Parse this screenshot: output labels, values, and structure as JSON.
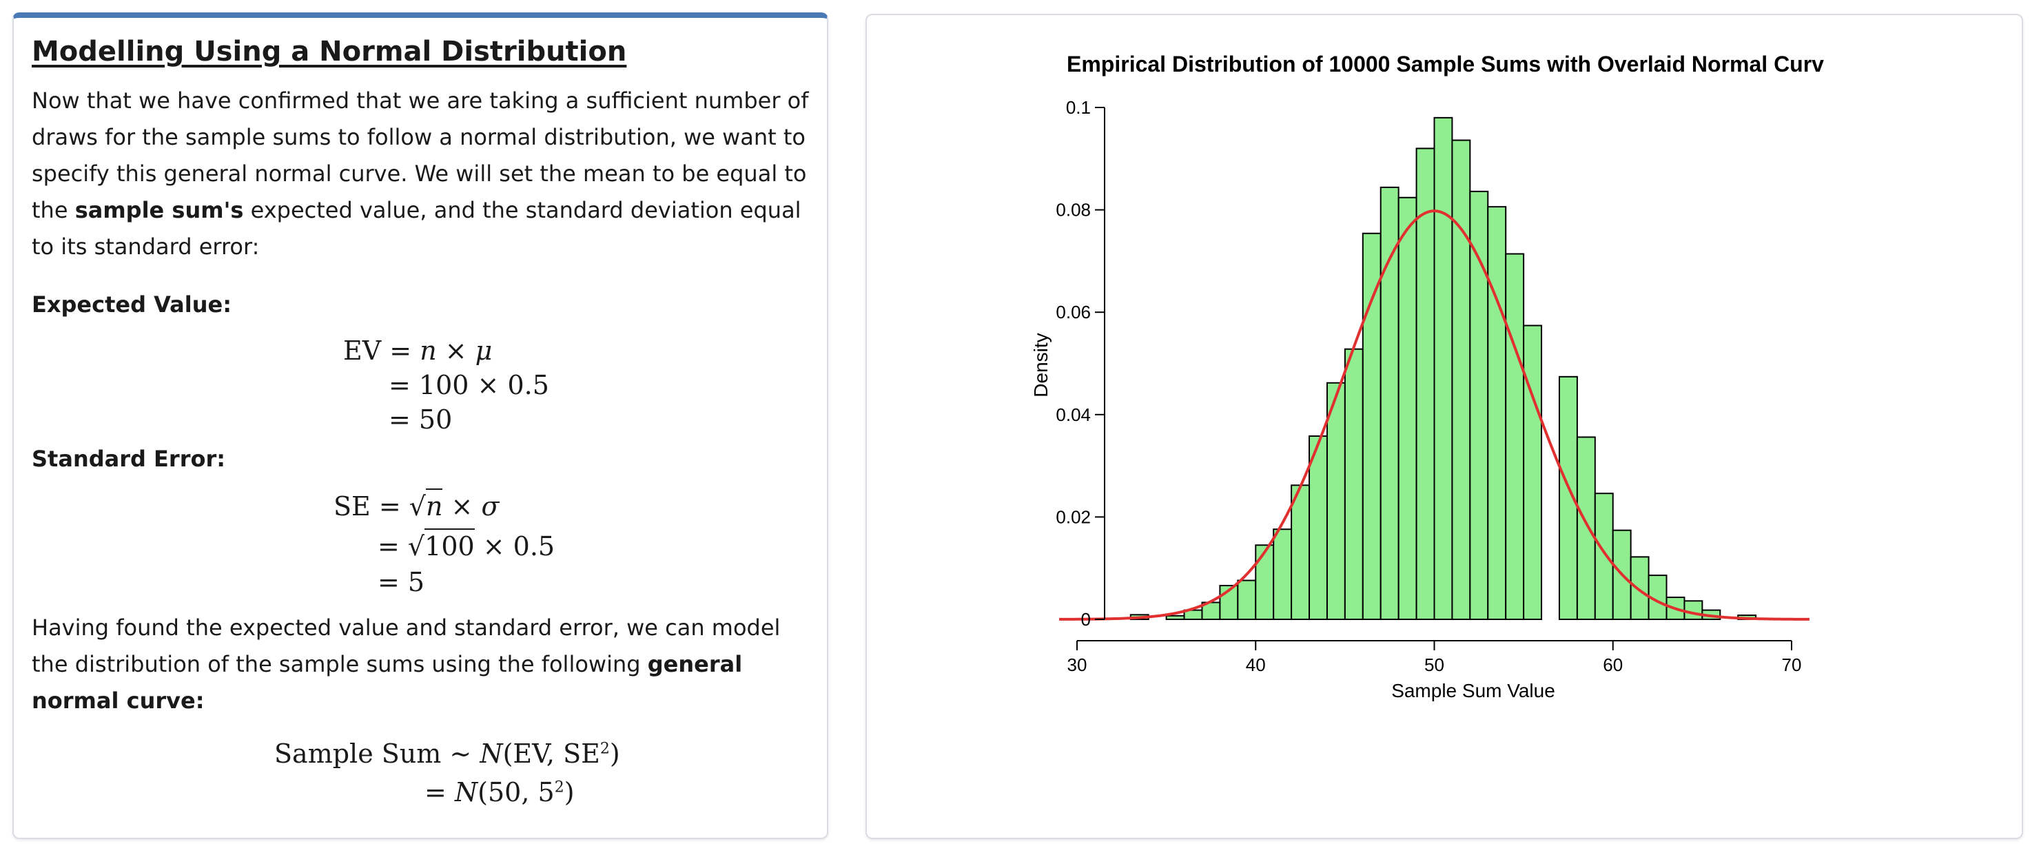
{
  "left": {
    "heading": "Modelling Using a Normal Distribution",
    "intro_part1": "Now that we have confirmed that we are taking a sufficient number of draws for the sample sums to follow a normal distribution, we want to specify this general normal curve. We will set the mean to be equal to the ",
    "intro_bold": "sample sum's",
    "intro_part2": " expected value, and the standard deviation equal to its standard error:",
    "ev_label": "Expected Value:",
    "ev_lines": [
      "EV = n × μ",
      "= 100 × 0.5",
      "= 50"
    ],
    "se_label": "Standard Error:",
    "se_lines": [
      "SE = √n × σ",
      "= √100 × 0.5",
      "= 5"
    ],
    "closing_part1": "Having found the expected value and standard error, we can model the distribution of the sample sums using the following ",
    "closing_bold": "general normal curve:",
    "model_lines": [
      "Sample Sum ∼ N(EV, SE²)",
      "= N(50, 5²)"
    ]
  },
  "chart_data": {
    "type": "bar",
    "title": "Empirical Distribution of 10000 Sample Sums with Overlaid Normal Curv",
    "xlabel": "Sample Sum Value",
    "ylabel": "Density",
    "xlim": [
      29,
      71
    ],
    "ylim": [
      0,
      0.1
    ],
    "x_ticks": [
      30,
      40,
      50,
      60,
      70
    ],
    "y_ticks": [
      0,
      0.02,
      0.04,
      0.06,
      0.08,
      0.1
    ],
    "y_tick_labels": [
      "0",
      "0.02",
      "0.04",
      "0.06",
      "0.08",
      "0.1"
    ],
    "bin_width": 1,
    "bins": [
      {
        "x": 33,
        "density": 0.0009
      },
      {
        "x": 35,
        "density": 0.0007
      },
      {
        "x": 36,
        "density": 0.0018
      },
      {
        "x": 37,
        "density": 0.0033
      },
      {
        "x": 38,
        "density": 0.0066
      },
      {
        "x": 39,
        "density": 0.0076
      },
      {
        "x": 40,
        "density": 0.0145
      },
      {
        "x": 41,
        "density": 0.0176
      },
      {
        "x": 42,
        "density": 0.0262
      },
      {
        "x": 43,
        "density": 0.0358
      },
      {
        "x": 44,
        "density": 0.0462
      },
      {
        "x": 45,
        "density": 0.0528
      },
      {
        "x": 46,
        "density": 0.0754
      },
      {
        "x": 47,
        "density": 0.0844
      },
      {
        "x": 48,
        "density": 0.0824
      },
      {
        "x": 49,
        "density": 0.092
      },
      {
        "x": 50,
        "density": 0.098
      },
      {
        "x": 51,
        "density": 0.0936
      },
      {
        "x": 52,
        "density": 0.0836
      },
      {
        "x": 53,
        "density": 0.0806
      },
      {
        "x": 54,
        "density": 0.0714
      },
      {
        "x": 55,
        "density": 0.0574
      },
      {
        "x": 57,
        "density": 0.0474
      },
      {
        "x": 58,
        "density": 0.0356
      },
      {
        "x": 59,
        "density": 0.0246
      },
      {
        "x": 60,
        "density": 0.0174
      },
      {
        "x": 61,
        "density": 0.0122
      },
      {
        "x": 62,
        "density": 0.0086
      },
      {
        "x": 63,
        "density": 0.0043
      },
      {
        "x": 64,
        "density": 0.0036
      },
      {
        "x": 65,
        "density": 0.0018
      },
      {
        "x": 67,
        "density": 0.0008
      }
    ],
    "curve": {
      "type": "normal",
      "mean": 50,
      "sd": 5,
      "x_range": [
        29,
        71
      ]
    },
    "colors": {
      "bar_fill": "#90ee90",
      "bar_edge": "#000000",
      "curve": "#e03030"
    },
    "grid": false,
    "legend": "none"
  }
}
